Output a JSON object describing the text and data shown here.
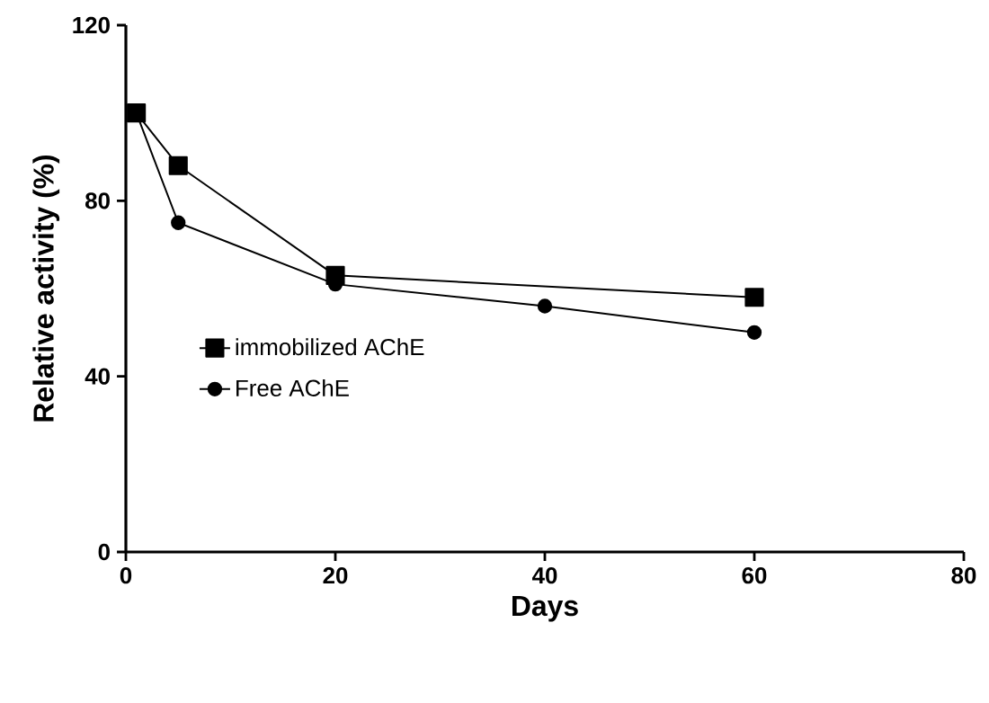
{
  "chart_data": {
    "type": "line",
    "xlabel": "Days",
    "ylabel": "Relative activity (%)",
    "xlim": [
      0,
      80
    ],
    "xticks": [
      0,
      20,
      40,
      60,
      80
    ],
    "ylim": [
      0,
      120
    ],
    "yticks": [
      0,
      40,
      80,
      120
    ],
    "legend": "left",
    "grid": false,
    "series": [
      {
        "name": "immobilized AChE",
        "color": "#000000",
        "marker": "square",
        "x": [
          1,
          5,
          20,
          60
        ],
        "values": [
          100,
          88,
          63,
          58
        ]
      },
      {
        "name": "Free AChE",
        "color": "#000000",
        "marker": "circle",
        "x": [
          1,
          5,
          20,
          40,
          60
        ],
        "values": [
          100,
          75,
          61,
          56,
          50
        ]
      }
    ]
  }
}
